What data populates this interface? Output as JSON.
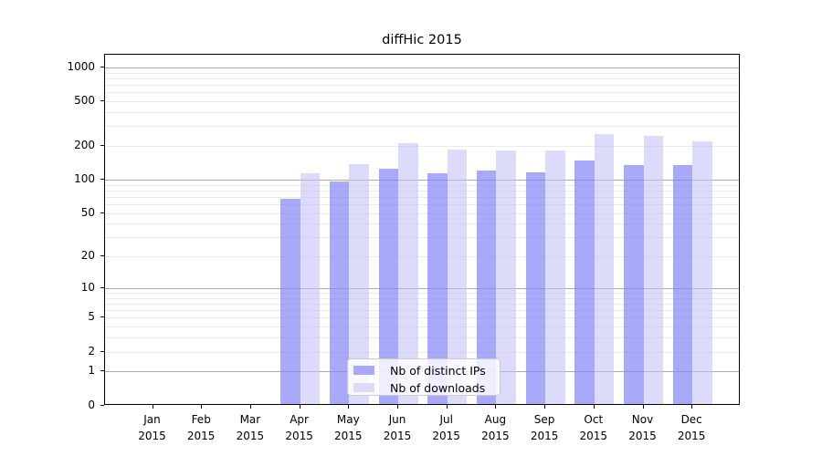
{
  "title": "diffHic 2015",
  "colors": {
    "bar_ips": "rgba(132,132,246,0.7)",
    "bar_ips_solid": "#a9a9f9",
    "bar_downloads": "rgba(191,191,246,0.55)",
    "bar_downloads_solid": "#dcdcfa",
    "major_grid": "#ababab",
    "minor_grid": "#ebebeb",
    "axis": "#000000",
    "background": "#ffffff",
    "text": "#000000"
  },
  "legend": {
    "items": [
      {
        "label": "Nb of distinct IPs",
        "series": "ips"
      },
      {
        "label": "Nb of downloads",
        "series": "downloads"
      }
    ]
  },
  "chart_data": {
    "type": "bar",
    "title": "diffHic 2015",
    "categories": [
      "Jan 2015",
      "Feb 2015",
      "Mar 2015",
      "Apr 2015",
      "May 2015",
      "Jun 2015",
      "Jul 2015",
      "Aug 2015",
      "Sep 2015",
      "Oct 2015",
      "Nov 2015",
      "Dec 2015"
    ],
    "series": [
      {
        "name": "Nb of distinct IPs",
        "key": "ips",
        "values": [
          0,
          0,
          0,
          65,
          93,
          122,
          111,
          117,
          113,
          145,
          131,
          131
        ],
        "color": "rgba(132,132,246,0.7)",
        "solid_color": "#a9a9f9"
      },
      {
        "name": "Nb of downloads",
        "key": "downloads",
        "values": [
          0,
          0,
          0,
          111,
          135,
          207,
          182,
          176,
          177,
          248,
          241,
          212
        ],
        "color": "rgba(191,191,246,0.55)",
        "solid_color": "#dcdcfa"
      }
    ],
    "xlabel": "",
    "ylabel": "",
    "y_scale": "log10(1+v)",
    "y_ticks": [
      0,
      1,
      2,
      5,
      10,
      20,
      50,
      100,
      200,
      500,
      1000
    ],
    "y_major_grid": [
      1,
      10,
      100,
      1000
    ],
    "y_minor_grid": [
      2,
      3,
      4,
      5,
      6,
      7,
      8,
      9,
      20,
      30,
      40,
      50,
      60,
      70,
      80,
      90,
      200,
      300,
      400,
      500,
      600,
      700,
      800,
      900
    ],
    "ylim": [
      0,
      1280
    ],
    "grid": true,
    "legend_position": "lower center"
  }
}
